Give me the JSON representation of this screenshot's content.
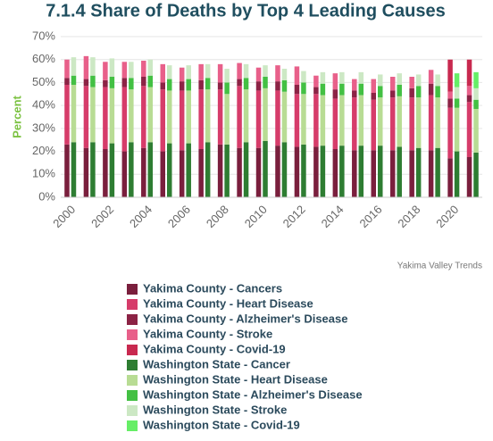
{
  "chart_data": {
    "type": "grouped-stacked-bar",
    "title": "7.1.4 Share of Deaths by Top 4 Leading Causes",
    "y_label": "Percent",
    "credit": "Yakima Valley Trends",
    "categories": [
      "2000",
      null,
      "2002",
      null,
      "2004",
      null,
      "2006",
      null,
      "2008",
      null,
      "2010",
      null,
      "2012",
      null,
      "2014",
      null,
      "2016",
      null,
      "2018",
      null,
      "2020",
      null
    ],
    "ylim": [
      0,
      70
    ],
    "yticks": [
      {
        "value": 0,
        "label": "0%"
      },
      {
        "value": 10,
        "label": "10%"
      },
      {
        "value": 20,
        "label": "20%"
      },
      {
        "value": 30,
        "label": "30%"
      },
      {
        "value": 40,
        "label": "40%"
      },
      {
        "value": 50,
        "label": "50%"
      },
      {
        "value": 60,
        "label": "60%"
      },
      {
        "value": 70,
        "label": "70%"
      }
    ],
    "grid": true,
    "series": [
      {
        "name": "Yakima County - Cancers",
        "stack": "Yakima County",
        "color": "#7a1f3d",
        "values": [
          23,
          21.5,
          21,
          20,
          21.5,
          20,
          20.5,
          21,
          23,
          21.5,
          21.5,
          22.5,
          22,
          22,
          21,
          20.5,
          20.5,
          20.5,
          20.5,
          20.5,
          17,
          17.5
        ]
      },
      {
        "name": "Yakima County - Heart Disease",
        "stack": "Yakima County",
        "color": "#d63c6a",
        "values": [
          26,
          27,
          27,
          28,
          27,
          27,
          26,
          26,
          24,
          27,
          25,
          24,
          23,
          23,
          22,
          23,
          22,
          23,
          23,
          24,
          22,
          24
        ]
      },
      {
        "name": "Yakima County - Alzheimer's Disease",
        "stack": "Yakima County",
        "color": "#8c2345",
        "values": [
          3,
          3,
          3,
          4,
          4,
          3,
          4,
          4,
          3,
          3,
          4,
          4,
          4,
          3,
          4,
          3,
          3,
          3,
          4,
          5,
          4,
          3
        ]
      },
      {
        "name": "Yakima County - Stroke",
        "stack": "Yakima County",
        "color": "#e8608a",
        "values": [
          8,
          10,
          8,
          7,
          7,
          8,
          6,
          7,
          8,
          7,
          6,
          7,
          8,
          5,
          7,
          5,
          6,
          6,
          5,
          6,
          3,
          4
        ]
      },
      {
        "name": "Yakima County - Covid-19",
        "stack": "Yakima County",
        "color": "#c8294f",
        "values": [
          0,
          0,
          0,
          0,
          0,
          0,
          0,
          0,
          0,
          0,
          0,
          0,
          0,
          0,
          0,
          0,
          0,
          0,
          0,
          0,
          14,
          11.5
        ]
      },
      {
        "name": "Washington State - Cancer",
        "stack": "Washington State",
        "color": "#2e7d32",
        "values": [
          24,
          24,
          23.5,
          24,
          24,
          23.5,
          23.5,
          24,
          23,
          24,
          24.5,
          24,
          23,
          22.5,
          22.5,
          22.5,
          22.5,
          22,
          21.5,
          21.5,
          20,
          19.5
        ]
      },
      {
        "name": "Washington State - Heart Disease",
        "stack": "Washington State",
        "color": "#b8dc94",
        "values": [
          25,
          24,
          24,
          23,
          24,
          23,
          23,
          23,
          22,
          23,
          23,
          22,
          22,
          22,
          22,
          22,
          21,
          22,
          22,
          22,
          19,
          19
        ]
      },
      {
        "name": "Washington State - Alzheimer's Disease",
        "stack": "Washington State",
        "color": "#43c043",
        "values": [
          4,
          5,
          5,
          5,
          5,
          5,
          5,
          5,
          5,
          5,
          5,
          5,
          5,
          5,
          5,
          5,
          5,
          5,
          5,
          5,
          4,
          4
        ]
      },
      {
        "name": "Washington State - Stroke",
        "stack": "Washington State",
        "color": "#cce8c4",
        "values": [
          8,
          8,
          8,
          7,
          7,
          6,
          6,
          6,
          6,
          6,
          5,
          5,
          5,
          5,
          5,
          5,
          5,
          5,
          5,
          5,
          5,
          5
        ]
      },
      {
        "name": "Washington State - Covid-19",
        "stack": "Washington State",
        "color": "#66ee66",
        "values": [
          0,
          0,
          0,
          0,
          0,
          0,
          0,
          0,
          0,
          0,
          0,
          0,
          0,
          0,
          0,
          0,
          0,
          0,
          0,
          0,
          6,
          7
        ]
      }
    ]
  }
}
